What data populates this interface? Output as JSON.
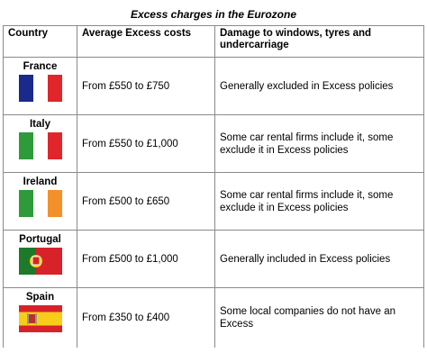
{
  "title": "Excess charges in the Eurozone",
  "table": {
    "header": [
      "Country",
      "Average Excess costs",
      "Damage to windows, tyres and undercarriage"
    ],
    "rows": [
      [
        "France",
        "From £550 to £750",
        "Generally excluded in Excess policies"
      ],
      [
        "Italy",
        "From £550 to £1,000",
        "Some car rental firms include it, some exclude it in Excess policies"
      ],
      [
        "Ireland",
        "From £500 to £650",
        "Some car rental firms include it, some exclude it in Excess policies"
      ],
      [
        "Portugal",
        "From £500 to £1,000",
        "Generally included in Excess policies"
      ],
      [
        "Spain",
        "From £350 to £400",
        "Some local companies do not have an Excess"
      ]
    ]
  }
}
